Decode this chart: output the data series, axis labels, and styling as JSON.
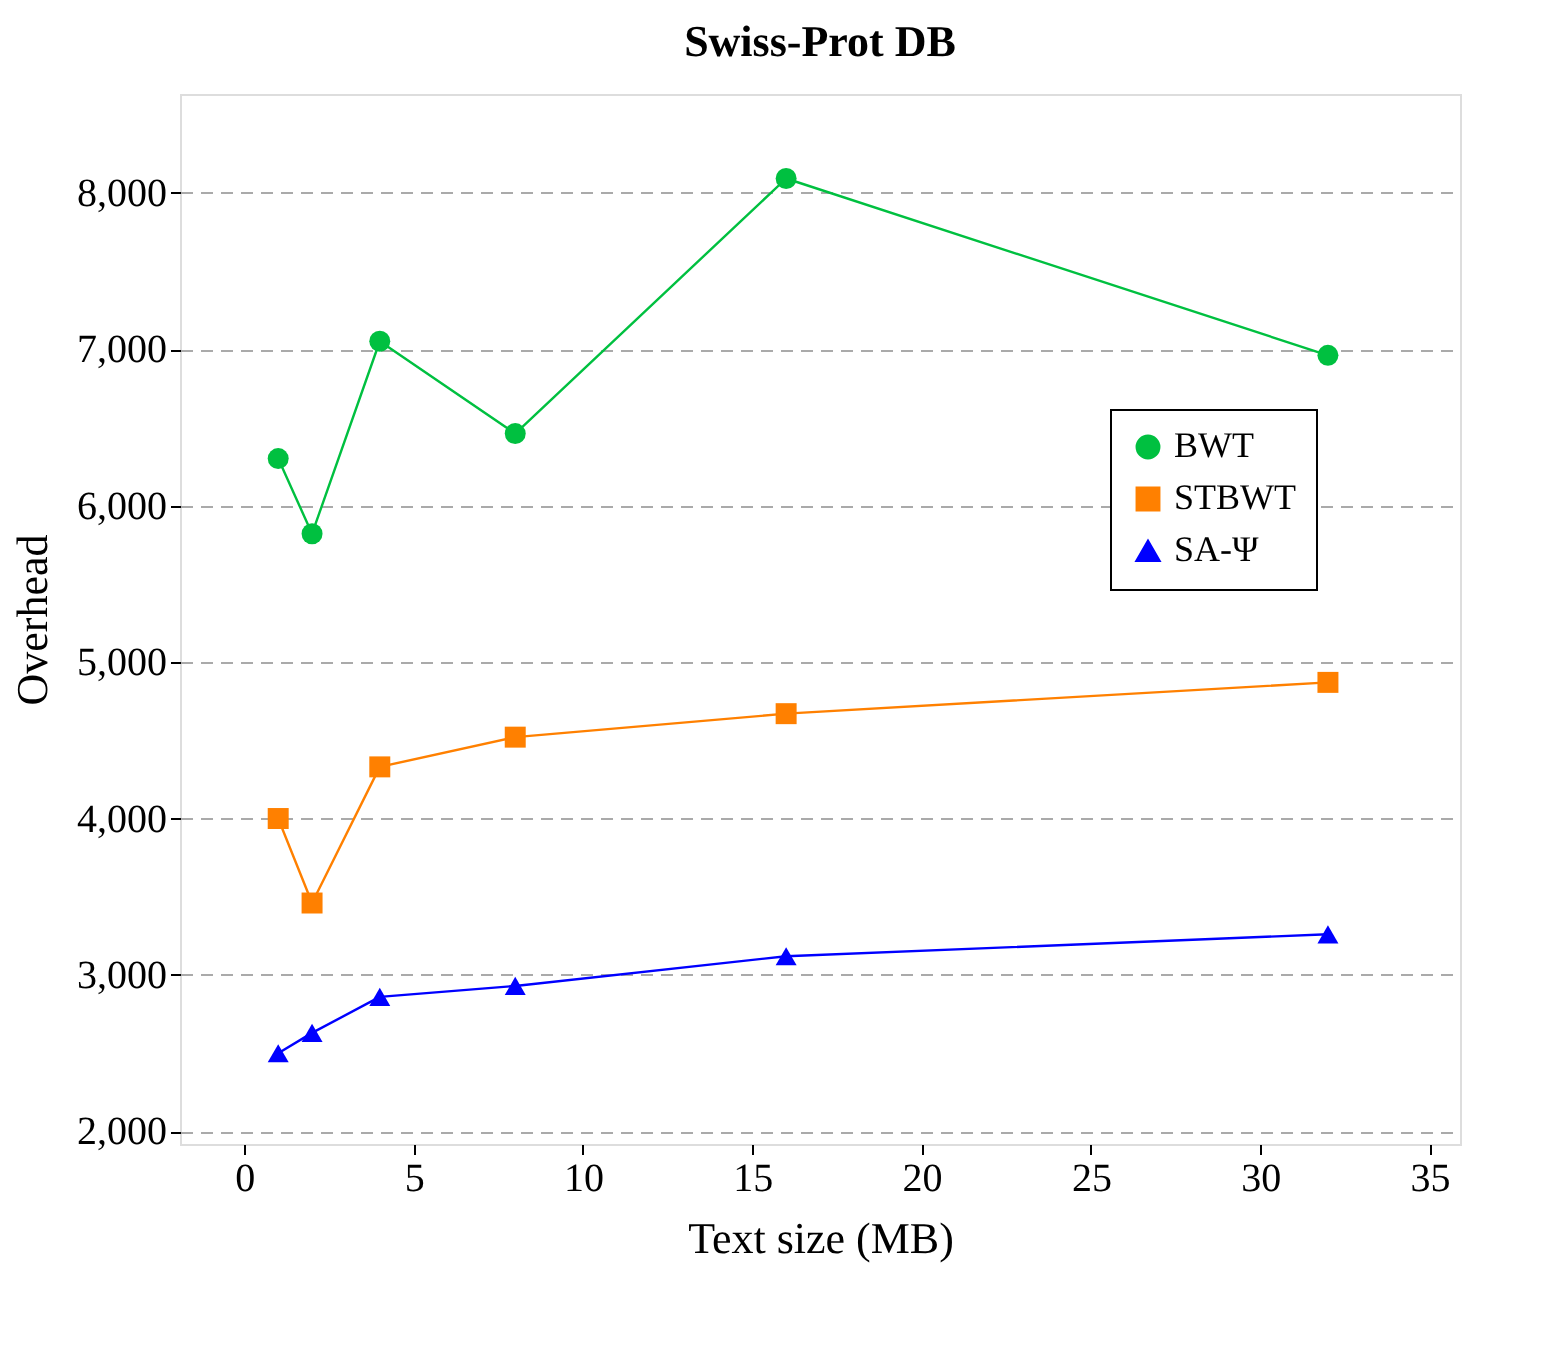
{
  "chart_data": {
    "type": "line",
    "title": "Swiss-Prot DB",
    "xlabel": "Text size (MB)",
    "ylabel": "Overhead",
    "x": [
      1,
      2,
      4,
      8,
      16,
      32
    ],
    "series": [
      {
        "name": "BWT",
        "color": "#00c040",
        "marker": "circle",
        "values": [
          6300,
          5820,
          7050,
          6460,
          8090,
          6960
        ]
      },
      {
        "name": "STBWT",
        "color": "#ff8000",
        "marker": "square",
        "values": [
          4000,
          3460,
          4330,
          4520,
          4670,
          4870
        ]
      },
      {
        "name": "SA-Ψ",
        "color": "#0000ff",
        "marker": "triangle",
        "values": [
          2500,
          2630,
          2860,
          2930,
          3120,
          3260
        ]
      }
    ],
    "xlim": [
      -1.9,
      35.9
    ],
    "xticks": [
      0,
      5,
      10,
      15,
      20,
      25,
      30,
      35
    ],
    "ylim": [
      1920,
      8630
    ],
    "yticks": [
      {
        "value": 2000,
        "label": "2,000"
      },
      {
        "value": 3000,
        "label": "3,000"
      },
      {
        "value": 4000,
        "label": "4,000"
      },
      {
        "value": 5000,
        "label": "5,000"
      },
      {
        "value": 6000,
        "label": "6,000"
      },
      {
        "value": 7000,
        "label": "7,000"
      },
      {
        "value": 8000,
        "label": "8,000"
      }
    ],
    "grid": "y",
    "legend": "right",
    "line_style": "solid"
  }
}
